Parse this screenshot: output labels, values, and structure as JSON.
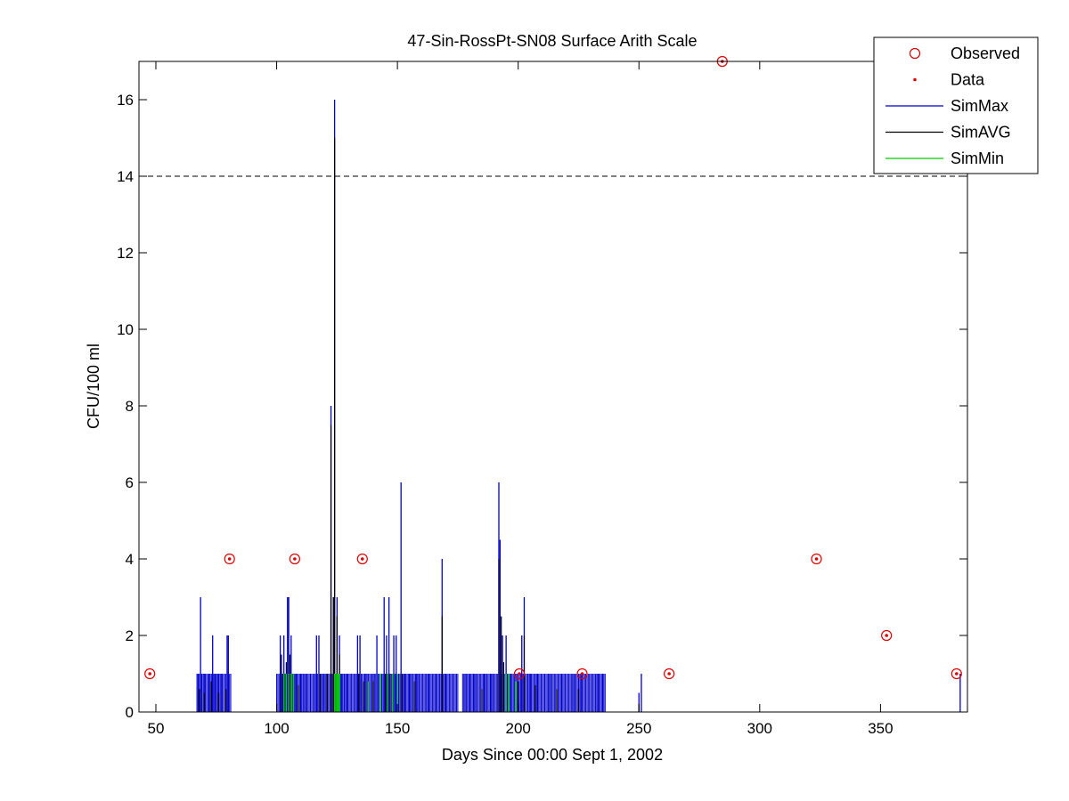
{
  "chart_data": {
    "type": "line",
    "title": "47-Sin-RossPt-SN08 Surface Arith Scale",
    "xlabel": "Days Since 00:00 Sept 1, 2002",
    "ylabel": "CFU/100 ml",
    "xlim": [
      43,
      386
    ],
    "ylim": [
      0,
      17
    ],
    "xticks": [
      50,
      100,
      150,
      200,
      250,
      300,
      350
    ],
    "yticks": [
      0,
      2,
      4,
      6,
      8,
      10,
      12,
      14,
      16
    ],
    "grid": false,
    "legend_position": "top-right",
    "threshold_line": {
      "y": 14,
      "style": "dashed"
    },
    "legend": [
      {
        "label": "Observed",
        "marker": "circle"
      },
      {
        "label": "Data",
        "marker": "dot"
      },
      {
        "label": "SimMax",
        "marker": "line"
      },
      {
        "label": "SimAVG",
        "marker": "line"
      },
      {
        "label": "SimMin",
        "marker": "line"
      }
    ],
    "colors": {
      "observed": "#e00000",
      "data": "#e00000",
      "simmax": "#0000cc",
      "simavg": "#000000",
      "simmin": "#00cc00",
      "threshold": "#000000"
    },
    "observed": [
      {
        "x": 47.5,
        "y": 1
      },
      {
        "x": 80.5,
        "y": 4
      },
      {
        "x": 107.5,
        "y": 4
      },
      {
        "x": 135.5,
        "y": 4
      },
      {
        "x": 200.5,
        "y": 1
      },
      {
        "x": 226.5,
        "y": 1
      },
      {
        "x": 262.5,
        "y": 1
      },
      {
        "x": 284.5,
        "y": 17
      },
      {
        "x": 323.5,
        "y": 4
      },
      {
        "x": 352.5,
        "y": 2
      },
      {
        "x": 381.5,
        "y": 1
      }
    ],
    "simmax_spikes": [
      [
        67.5,
        1
      ],
      [
        68.5,
        3
      ],
      [
        70,
        1
      ],
      [
        72,
        1
      ],
      [
        73.5,
        2
      ],
      [
        74.5,
        1
      ],
      [
        75.5,
        1
      ],
      [
        77,
        1
      ],
      [
        79.5,
        2
      ],
      [
        80,
        2
      ],
      [
        101.5,
        2
      ],
      [
        102.5,
        1
      ],
      [
        103,
        2
      ],
      [
        104.5,
        3
      ],
      [
        105,
        3
      ],
      [
        106,
        2
      ],
      [
        107,
        1
      ],
      [
        108,
        1
      ],
      [
        110,
        1
      ],
      [
        112,
        1
      ],
      [
        116.5,
        2
      ],
      [
        117.5,
        2
      ],
      [
        119,
        1
      ],
      [
        120.5,
        1
      ],
      [
        122.5,
        8
      ],
      [
        123.5,
        3
      ],
      [
        124,
        16
      ],
      [
        125,
        3
      ],
      [
        126,
        2
      ],
      [
        127,
        1
      ],
      [
        129,
        1
      ],
      [
        133.5,
        2
      ],
      [
        134.5,
        2
      ],
      [
        137,
        1
      ],
      [
        140,
        1
      ],
      [
        141.5,
        2
      ],
      [
        144.5,
        3
      ],
      [
        145.5,
        2
      ],
      [
        146.5,
        3
      ],
      [
        148.5,
        2
      ],
      [
        149.5,
        2
      ],
      [
        151.5,
        6
      ],
      [
        153,
        1
      ],
      [
        155,
        1
      ],
      [
        158,
        1
      ],
      [
        163,
        1
      ],
      [
        166,
        1
      ],
      [
        168.5,
        4
      ],
      [
        170,
        1
      ],
      [
        178,
        1
      ],
      [
        180,
        1
      ],
      [
        182,
        1
      ],
      [
        186,
        1
      ],
      [
        189,
        1
      ],
      [
        192,
        6
      ],
      [
        192.5,
        4.5
      ],
      [
        193.5,
        2
      ],
      [
        195,
        2
      ],
      [
        197,
        1
      ],
      [
        199,
        1
      ],
      [
        201.5,
        2
      ],
      [
        202.5,
        3
      ],
      [
        205,
        1
      ],
      [
        208,
        1
      ],
      [
        213,
        1
      ],
      [
        218,
        1
      ],
      [
        223,
        1
      ],
      [
        226,
        1
      ],
      [
        233,
        1
      ],
      [
        235,
        1
      ],
      [
        250,
        0.5
      ],
      [
        251,
        1
      ],
      [
        383,
        1
      ]
    ],
    "simmax_base_ranges": [
      [
        67,
        81
      ],
      [
        100,
        175
      ],
      [
        177,
        236
      ]
    ],
    "simavg_spikes": [
      [
        68,
        0.6
      ],
      [
        70,
        0.5
      ],
      [
        73,
        0.8
      ],
      [
        76,
        0.5
      ],
      [
        79,
        0.6
      ],
      [
        102,
        1.5
      ],
      [
        104,
        1.3
      ],
      [
        105.5,
        1.5
      ],
      [
        107,
        1
      ],
      [
        109,
        0.7
      ],
      [
        118,
        1
      ],
      [
        121,
        1
      ],
      [
        122.5,
        7.5
      ],
      [
        123.5,
        3
      ],
      [
        124,
        15
      ],
      [
        125,
        2.5
      ],
      [
        126,
        1.5
      ],
      [
        134,
        1
      ],
      [
        136,
        0.8
      ],
      [
        140,
        0.8
      ],
      [
        145,
        1
      ],
      [
        147,
        1
      ],
      [
        152,
        1
      ],
      [
        157,
        0.8
      ],
      [
        168.5,
        2.5
      ],
      [
        185,
        0.6
      ],
      [
        192,
        4
      ],
      [
        193,
        2.5
      ],
      [
        194,
        1.3
      ],
      [
        196,
        1
      ],
      [
        200,
        0.8
      ],
      [
        202.5,
        2
      ],
      [
        207,
        0.7
      ],
      [
        216,
        0.6
      ],
      [
        225,
        0.6
      ],
      [
        250,
        0.2
      ]
    ],
    "simmin_spikes": [
      [
        103,
        1
      ],
      [
        104,
        1
      ],
      [
        105,
        1
      ],
      [
        106,
        1
      ],
      [
        107,
        1
      ],
      [
        124,
        1
      ],
      [
        124.5,
        1
      ],
      [
        125,
        1
      ],
      [
        125.5,
        1
      ],
      [
        126,
        1
      ],
      [
        138,
        0.8
      ],
      [
        143,
        1
      ],
      [
        146,
        1
      ],
      [
        148,
        1
      ],
      [
        150,
        1
      ],
      [
        195,
        1
      ],
      [
        196,
        1
      ],
      [
        199,
        0.8
      ]
    ]
  }
}
